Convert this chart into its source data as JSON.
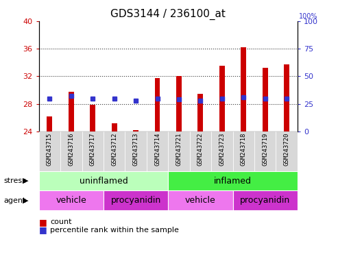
{
  "title": "GDS3144 / 236100_at",
  "samples": [
    "GSM243715",
    "GSM243716",
    "GSM243717",
    "GSM243712",
    "GSM243713",
    "GSM243714",
    "GSM243721",
    "GSM243722",
    "GSM243723",
    "GSM243718",
    "GSM243719",
    "GSM243720"
  ],
  "counts": [
    26.2,
    29.8,
    27.9,
    25.2,
    24.2,
    31.7,
    32.0,
    29.5,
    33.5,
    36.2,
    33.2,
    33.7
  ],
  "percentile_ranks_pct": [
    30,
    32,
    30,
    30,
    28,
    30,
    29,
    28,
    30,
    31,
    30,
    30
  ],
  "ylim_left": [
    24,
    40
  ],
  "ylim_right": [
    0,
    100
  ],
  "yticks_left": [
    24,
    28,
    32,
    36,
    40
  ],
  "yticks_right": [
    0,
    25,
    50,
    75,
    100
  ],
  "bar_color": "#cc0000",
  "dot_color": "#3333cc",
  "bar_bottom": 24,
  "bar_width": 0.25,
  "stress_uninflamed_color": "#bbffbb",
  "stress_inflamed_color": "#44ee44",
  "agent_vehicle_color": "#ee77ee",
  "agent_procyanidin_color": "#cc33cc",
  "grid_color": "#333333",
  "plot_bg": "#ffffff",
  "left_tick_color": "#cc0000",
  "right_tick_color": "#3333cc",
  "tick_label_size": 8,
  "title_fontsize": 11,
  "label_fontsize": 9,
  "legend_fontsize": 8
}
